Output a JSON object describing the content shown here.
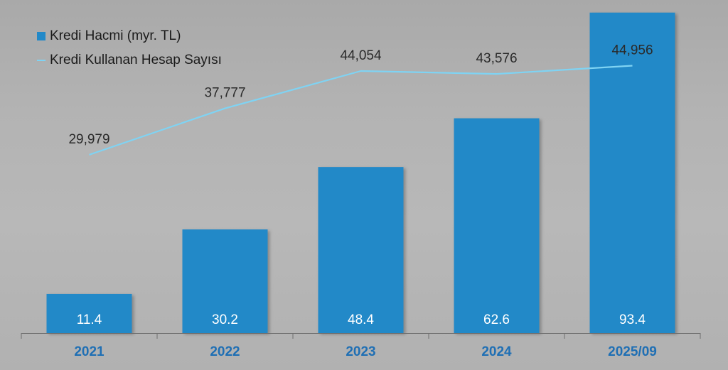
{
  "colors": {
    "bar": "#2289c8",
    "line": "#7fd3f3",
    "axis_label": "#1f6fb4",
    "text_dark": "#2a2a2a",
    "bar_label": "#ffffff"
  },
  "legend": {
    "bar_label": "Kredi Hacmi (myr. TL)",
    "line_label": "Kredi Kullanan Hesap Sayısı"
  },
  "chart_data": {
    "type": "bar",
    "categories": [
      "2021",
      "2022",
      "2023",
      "2024",
      "2025/09"
    ],
    "series": [
      {
        "name": "Kredi Hacmi (myr. TL)",
        "kind": "bar",
        "values": [
          11.4,
          30.2,
          48.4,
          62.6,
          93.4
        ],
        "labels": [
          "11.4",
          "30.2",
          "48.4",
          "62.6",
          "93.4"
        ]
      },
      {
        "name": "Kredi Kullanan Hesap Sayısı",
        "kind": "line",
        "values": [
          29979,
          37777,
          44054,
          43576,
          44956
        ],
        "labels": [
          "29,979",
          "37,777",
          "44,054",
          "43,576",
          "44,956"
        ]
      }
    ],
    "title": "",
    "xlabel": "",
    "ylabel": "",
    "bar_ylim": [
      0,
      95
    ],
    "line_ylim": [
      0,
      56000
    ],
    "grid": false,
    "legend_position": "top-left"
  }
}
